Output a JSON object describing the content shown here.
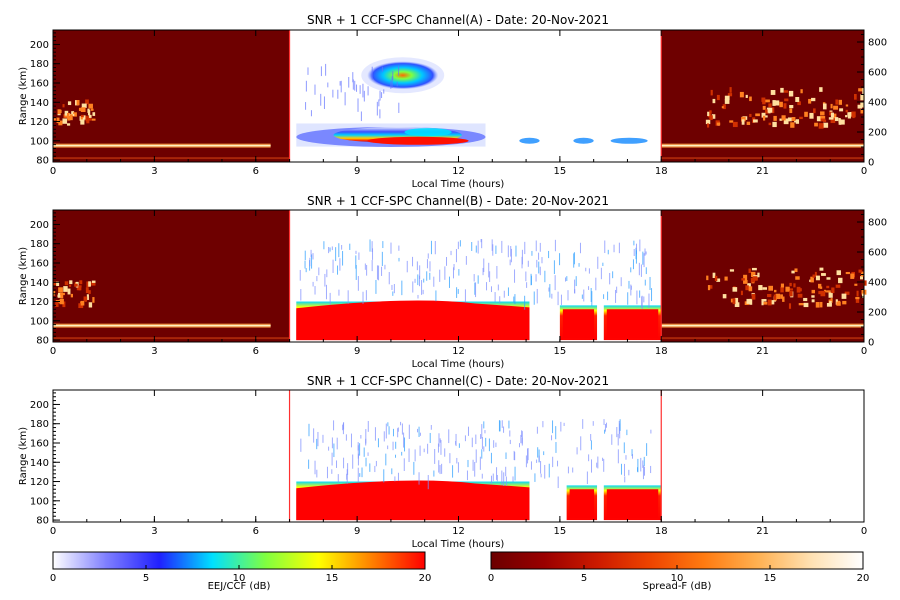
{
  "panels": [
    {
      "title": "SNR + 1 CCF-SPC Channel(A) - Date: 20-Nov-2021",
      "ylabel": "Range (km)",
      "xlabel": "Local Time (hours)",
      "has_right_axis": true
    },
    {
      "title": "SNR + 1 CCF-SPC Channel(B) - Date: 20-Nov-2021",
      "ylabel": "Range (km)",
      "xlabel": "Local Time (hours)",
      "has_right_axis": true
    },
    {
      "title": "SNR + 1 CCF-SPC Channel(C) - Date: 20-Nov-2021",
      "ylabel": "Range (km)",
      "xlabel": "Local Time (hours)",
      "has_right_axis": false
    }
  ],
  "colorbars": [
    {
      "label": "EEJ/CCF (dB)",
      "ticks": [
        "0",
        "5",
        "10",
        "15",
        "20"
      ],
      "colors": [
        "#ffffff",
        "#7f7fff",
        "#2020ff",
        "#00e0ff",
        "#80ff40",
        "#ffff00",
        "#ff8000",
        "#ff0000"
      ]
    },
    {
      "label": "Spread-F (dB)",
      "ticks": [
        "0",
        "5",
        "10",
        "15",
        "20"
      ],
      "colors": [
        "#6b0000",
        "#9a0000",
        "#cc1a00",
        "#ee4400",
        "#ff7a10",
        "#ffb050",
        "#ffe0b0",
        "#ffffff"
      ]
    }
  ],
  "chart_data": [
    {
      "type": "heatmap",
      "title": "SNR + 1 CCF-SPC Channel(A) - Date: 20-Nov-2021",
      "xlabel": "Local Time (hours)",
      "ylabel": "Range (km)",
      "xlim": [
        0,
        24
      ],
      "xticks": [
        "0",
        "3",
        "6",
        "9",
        "12",
        "15",
        "18",
        "21",
        "0"
      ],
      "ylim": [
        78,
        215
      ],
      "yticks": [
        "80",
        "100",
        "120",
        "140",
        "160",
        "180",
        "200"
      ],
      "right_ylim": [
        0,
        880
      ],
      "right_yticks": [
        "0",
        "200",
        "400",
        "600",
        "800"
      ],
      "night_intervals": [
        [
          0,
          7
        ],
        [
          18,
          24
        ]
      ],
      "day_interval": [
        7,
        18
      ],
      "layers": [
        {
          "name": "eej",
          "t_start": 7.2,
          "t_end": 12.8,
          "range_center": 100,
          "peak_db": 20
        },
        {
          "name": "150-km echo",
          "t_start": 9.3,
          "t_end": 11.4,
          "range_center": 168,
          "peak_db": 15
        }
      ],
      "spread_f_plumes": [
        [
          0,
          1.2
        ],
        [
          19.3,
          24
        ]
      ]
    },
    {
      "type": "heatmap",
      "title": "SNR + 1 CCF-SPC Channel(B) - Date: 20-Nov-2021",
      "xlabel": "Local Time (hours)",
      "ylabel": "Range (km)",
      "xlim": [
        0,
        24
      ],
      "xticks": [
        "0",
        "3",
        "6",
        "9",
        "12",
        "15",
        "18",
        "21",
        "0"
      ],
      "ylim": [
        78,
        215
      ],
      "yticks": [
        "80",
        "100",
        "120",
        "140",
        "160",
        "180",
        "200"
      ],
      "right_ylim": [
        0,
        880
      ],
      "right_yticks": [
        "0",
        "200",
        "400",
        "600",
        "800"
      ],
      "night_intervals": [
        [
          0,
          7
        ],
        [
          18,
          24
        ]
      ],
      "day_interval": [
        7,
        18
      ],
      "saturated_blocks": [
        [
          7.2,
          14.1
        ],
        [
          15.0,
          16.1
        ],
        [
          16.3,
          18.0
        ]
      ],
      "spread_f_plumes": [
        [
          0,
          1.2
        ],
        [
          19.3,
          24
        ]
      ]
    },
    {
      "type": "heatmap",
      "title": "SNR + 1 CCF-SPC Channel(C) - Date: 20-Nov-2021",
      "xlabel": "Local Time (hours)",
      "ylabel": "Range (km)",
      "xlim": [
        0,
        24
      ],
      "xticks": [
        "0",
        "3",
        "6",
        "9",
        "12",
        "15",
        "18",
        "21",
        "0"
      ],
      "ylim": [
        78,
        215
      ],
      "yticks": [
        "80",
        "100",
        "120",
        "140",
        "160",
        "180",
        "200"
      ],
      "day_interval": [
        7,
        18
      ],
      "saturated_blocks": [
        [
          7.2,
          14.1
        ],
        [
          15.2,
          16.1
        ],
        [
          16.3,
          18.0
        ]
      ]
    }
  ]
}
